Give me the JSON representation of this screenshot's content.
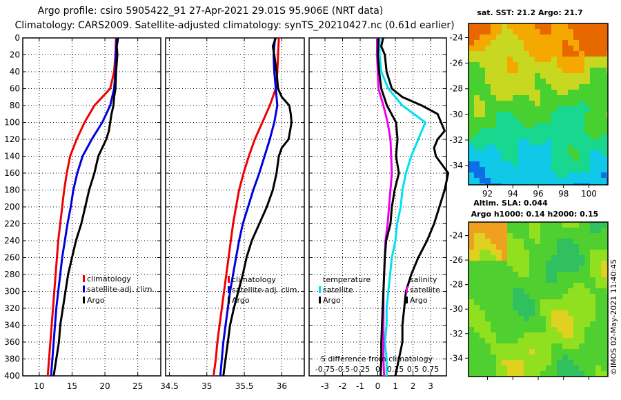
{
  "header": {
    "line1": "Argo profile: csiro 5905422_91 27-Apr-2021 29.01S 95.906E (NRT data)",
    "line2": "Climatology: CARS2009. Satellite-adjusted climatology: synTS_20210427.nc (0.61d earlier)"
  },
  "colors": {
    "climatology": "#ee0000",
    "satellite": "#0000dd",
    "argo": "#000000",
    "sat_temp_diff": "#00e0ee",
    "sat_sal_diff": "#ee00ee"
  },
  "chart_data": [
    {
      "type": "line",
      "panel": "temperature",
      "x_range": [
        7.5,
        28.5
      ],
      "y_range": [
        0,
        400
      ],
      "y_inverted": true,
      "xticks": [
        10,
        15,
        20,
        25
      ],
      "yticks": [
        0,
        20,
        40,
        60,
        80,
        100,
        120,
        140,
        160,
        180,
        200,
        220,
        240,
        260,
        280,
        300,
        320,
        340,
        360,
        380,
        400
      ],
      "legend": [
        "climatology",
        "satellite-adj. clim.",
        "Argo"
      ],
      "series": [
        {
          "name": "climatology",
          "color": "#ee0000",
          "depth": [
            0,
            20,
            40,
            60,
            70,
            80,
            100,
            120,
            140,
            160,
            180,
            200,
            220,
            240,
            260,
            280,
            300,
            320,
            340,
            360,
            380,
            400
          ],
          "values": [
            21.7,
            21.6,
            21.4,
            20.8,
            19.6,
            18.4,
            16.9,
            15.7,
            14.7,
            14.2,
            13.8,
            13.5,
            13.2,
            12.9,
            12.7,
            12.5,
            12.3,
            12.1,
            11.9,
            11.7,
            11.5,
            11.3
          ]
        },
        {
          "name": "satellite-adj. clim.",
          "color": "#0000dd",
          "depth": [
            0,
            20,
            40,
            60,
            80,
            100,
            120,
            140,
            160,
            180,
            200,
            220,
            240,
            260,
            280,
            300,
            320,
            340,
            360,
            380,
            400
          ],
          "values": [
            21.8,
            21.7,
            21.6,
            21.4,
            20.8,
            19.6,
            18.0,
            16.6,
            15.8,
            15.2,
            14.8,
            14.3,
            13.9,
            13.5,
            13.2,
            12.9,
            12.6,
            12.4,
            12.2,
            12.0,
            11.8
          ]
        },
        {
          "name": "Argo",
          "color": "#000000",
          "depth": [
            0,
            10,
            20,
            40,
            60,
            70,
            80,
            90,
            100,
            110,
            120,
            130,
            140,
            160,
            180,
            200,
            220,
            240,
            260,
            280,
            300,
            320,
            340,
            360,
            380,
            400
          ],
          "values": [
            22.0,
            21.8,
            21.9,
            21.7,
            21.6,
            21.4,
            21.3,
            21.0,
            20.8,
            20.6,
            20.2,
            19.6,
            19.0,
            18.4,
            17.6,
            17.0,
            16.4,
            15.6,
            15.0,
            14.4,
            14.0,
            13.6,
            13.2,
            13.0,
            12.6,
            12.2
          ]
        }
      ]
    },
    {
      "type": "line",
      "panel": "salinity",
      "x_range": [
        34.45,
        36.3
      ],
      "y_range": [
        0,
        400
      ],
      "y_inverted": true,
      "xticks": [
        34.5,
        35,
        35.5,
        36
      ],
      "legend": [
        "climatology",
        "satellite-adj. clim.",
        "Argo"
      ],
      "series": [
        {
          "name": "climatology",
          "color": "#ee0000",
          "depth": [
            0,
            20,
            40,
            60,
            80,
            100,
            120,
            140,
            160,
            180,
            200,
            220,
            240,
            260,
            280,
            300,
            320,
            340,
            360,
            380,
            400
          ],
          "values": [
            35.96,
            35.95,
            35.94,
            35.92,
            35.84,
            35.74,
            35.64,
            35.56,
            35.49,
            35.43,
            35.39,
            35.35,
            35.32,
            35.29,
            35.26,
            35.23,
            35.2,
            35.17,
            35.14,
            35.12,
            35.09
          ]
        },
        {
          "name": "satellite-adj. clim.",
          "color": "#0000dd",
          "depth": [
            0,
            20,
            40,
            60,
            80,
            100,
            120,
            140,
            160,
            180,
            200,
            220,
            240,
            260,
            280,
            300,
            320,
            340,
            360,
            380,
            400
          ],
          "values": [
            35.91,
            35.89,
            35.9,
            35.92,
            35.94,
            35.9,
            35.84,
            35.77,
            35.7,
            35.62,
            35.55,
            35.48,
            35.43,
            35.39,
            35.35,
            35.31,
            35.28,
            35.25,
            35.22,
            35.2,
            35.18
          ]
        },
        {
          "name": "Argo",
          "color": "#000000",
          "depth": [
            0,
            10,
            20,
            40,
            60,
            70,
            80,
            90,
            100,
            110,
            120,
            130,
            140,
            160,
            180,
            200,
            220,
            240,
            260,
            280,
            300,
            320,
            340,
            360,
            380,
            400
          ],
          "values": [
            35.92,
            35.88,
            35.9,
            35.93,
            35.95,
            36.0,
            36.1,
            36.12,
            36.13,
            36.11,
            36.09,
            36.0,
            35.96,
            35.93,
            35.88,
            35.8,
            35.7,
            35.6,
            35.53,
            35.48,
            35.42,
            35.36,
            35.31,
            35.28,
            35.25,
            35.22
          ]
        }
      ]
    },
    {
      "type": "line",
      "panel": "difference",
      "x_range": [
        -3.9,
        3.9
      ],
      "x_range_salinity": [
        -0.975,
        0.975
      ],
      "y_range": [
        0,
        400
      ],
      "y_inverted": true,
      "xticks": [
        -3,
        -2,
        -1,
        0,
        1,
        2,
        3
      ],
      "xticks_salinity_label": "S difference from climatology",
      "xticks_salinity": [
        "-0.75",
        "-0.5",
        "-0.25",
        "0",
        "0.25",
        "0.5",
        "0.75"
      ],
      "legend_temperature": [
        "temperature",
        "satellite",
        "Argo"
      ],
      "legend_salinity": [
        "salinity",
        "satellite",
        "Argo"
      ],
      "series": [
        {
          "name": "temperature satellite",
          "color": "#00e0ee",
          "depth": [
            0,
            20,
            40,
            60,
            80,
            100,
            120,
            140,
            160,
            180,
            200,
            220,
            240,
            260,
            280,
            300,
            320,
            340,
            360,
            380,
            400
          ],
          "values": [
            0.1,
            0.1,
            0.2,
            0.6,
            1.4,
            2.7,
            2.3,
            1.9,
            1.6,
            1.4,
            1.3,
            1.1,
            1.0,
            0.8,
            0.7,
            0.6,
            0.5,
            0.5,
            0.4,
            0.5,
            0.5
          ]
        },
        {
          "name": "salinity satellite",
          "color": "#ee00ee",
          "depth": [
            0,
            20,
            40,
            60,
            80,
            100,
            120,
            140,
            160,
            180,
            200,
            220,
            240,
            260,
            280,
            300,
            320,
            340,
            360,
            380,
            400
          ],
          "values": [
            -0.01,
            -0.01,
            0.0,
            0.01,
            0.08,
            0.14,
            0.18,
            0.19,
            0.2,
            0.18,
            0.16,
            0.14,
            0.11,
            0.1,
            0.09,
            0.08,
            0.08,
            0.08,
            0.08,
            0.08,
            0.09
          ]
        },
        {
          "name": "temperature Argo",
          "color": "#000000",
          "depth": [
            0,
            10,
            20,
            40,
            60,
            70,
            80,
            90,
            100,
            110,
            115,
            120,
            130,
            140,
            160,
            180,
            200,
            220,
            240,
            260,
            280,
            300,
            320,
            340,
            360,
            380,
            400
          ],
          "values": [
            0.3,
            0.2,
            0.4,
            0.5,
            0.8,
            1.4,
            2.5,
            3.4,
            3.6,
            3.8,
            3.6,
            3.4,
            3.2,
            3.3,
            4.0,
            3.8,
            3.5,
            3.2,
            2.8,
            2.3,
            1.9,
            1.6,
            1.5,
            1.4,
            1.4,
            1.2,
            1.0
          ]
        },
        {
          "name": "salinity Argo",
          "color": "#000000",
          "depth": [
            0,
            20,
            40,
            60,
            80,
            100,
            120,
            140,
            160,
            180,
            200,
            220,
            240,
            260,
            280,
            300,
            320,
            340,
            360,
            380,
            400
          ],
          "values": [
            0.01,
            0.0,
            0.02,
            0.05,
            0.13,
            0.26,
            0.28,
            0.26,
            0.3,
            0.24,
            0.2,
            0.18,
            0.12,
            0.1,
            0.09,
            0.08,
            0.07,
            0.06,
            0.05,
            0.05,
            0.04
          ]
        }
      ]
    },
    {
      "type": "heatmap",
      "panel": "sst_map",
      "title": "sat. SST: 21.2 Argo: 21.7",
      "x_range": [
        90.5,
        101.5
      ],
      "y_range": [
        -35.5,
        -22.9
      ],
      "xticks": [
        92,
        94,
        96,
        98,
        100
      ],
      "yticks": [
        -24,
        -26,
        -28,
        -30,
        -32,
        -34
      ]
    },
    {
      "type": "heatmap",
      "panel": "sla_map",
      "title_line1": "Altim. SLA: 0.044",
      "title_line2": "Argo h1000: 0.14 h2000: 0.15",
      "x_range": [
        90.5,
        101.5
      ],
      "y_range": [
        -35.5,
        -22.9
      ],
      "yticks": [
        -24,
        -26,
        -28,
        -30,
        -32,
        -34
      ]
    }
  ],
  "watermark": "©IMOS 02-May-2021 11:40:45"
}
